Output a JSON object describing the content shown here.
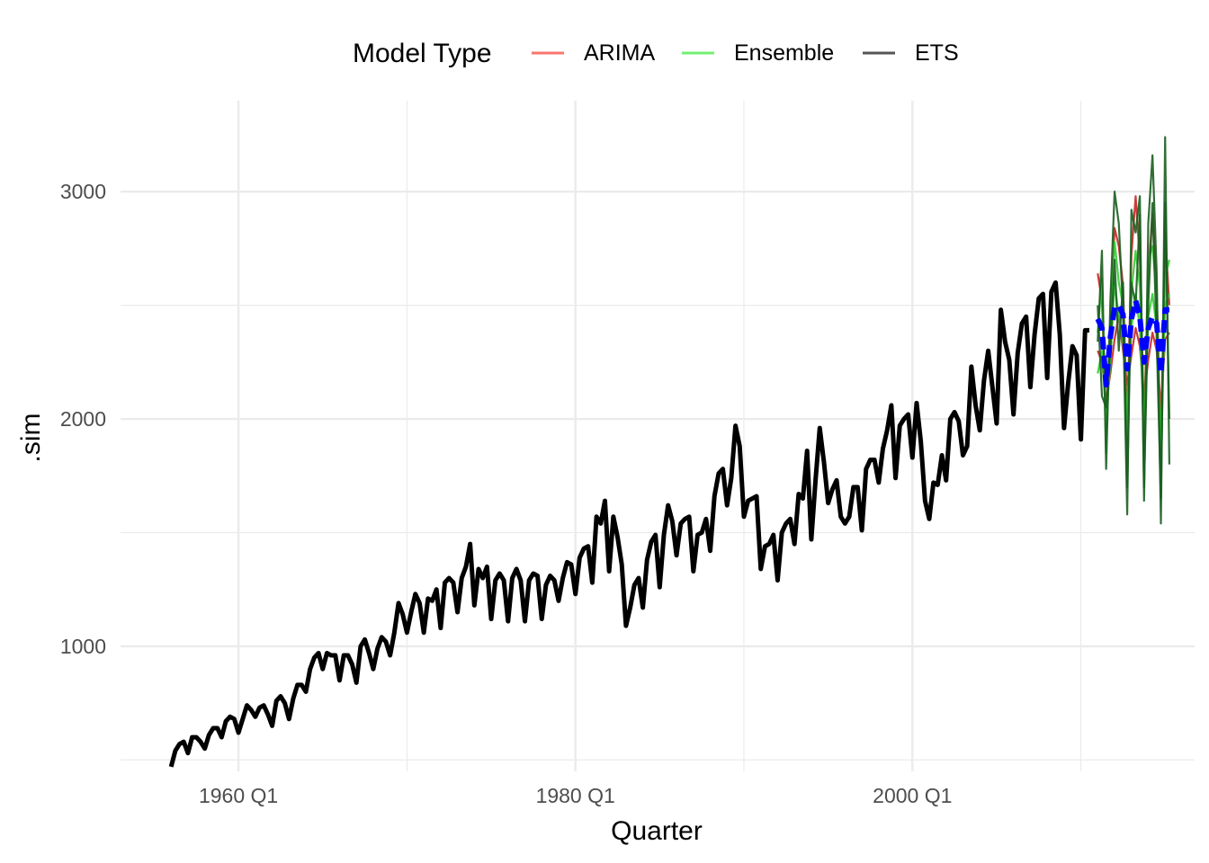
{
  "chart_data": {
    "type": "line",
    "title": "",
    "xlabel": "Quarter",
    "ylabel": ".sim",
    "x_ticks": [
      "1960 Q1",
      "1980 Q1",
      "2000 Q1"
    ],
    "y_ticks": [
      "1000",
      "2000",
      "3000"
    ],
    "x_range": [
      "1953 Q1",
      "2016 Q4"
    ],
    "ylim": [
      450,
      3400
    ],
    "grid": true,
    "legend": {
      "title": "Model Type",
      "position": "top",
      "items": [
        {
          "label": "ARIMA",
          "color": "#f8766d"
        },
        {
          "label": "Ensemble",
          "color": "#73f073"
        },
        {
          "label": "ETS",
          "color": "#555555"
        }
      ]
    },
    "history": {
      "start": "1956 Q1",
      "color": "#000000",
      "values": [
        470,
        540,
        570,
        580,
        530,
        600,
        600,
        580,
        550,
        610,
        640,
        640,
        600,
        670,
        690,
        680,
        620,
        680,
        740,
        720,
        690,
        730,
        740,
        700,
        650,
        760,
        780,
        750,
        680,
        770,
        830,
        830,
        800,
        900,
        950,
        970,
        900,
        970,
        960,
        960,
        850,
        960,
        960,
        920,
        840,
        1000,
        1030,
        970,
        900,
        990,
        1040,
        1020,
        960,
        1060,
        1190,
        1140,
        1060,
        1150,
        1230,
        1190,
        1060,
        1210,
        1200,
        1250,
        1080,
        1280,
        1300,
        1280,
        1150,
        1300,
        1350,
        1450,
        1180,
        1340,
        1300,
        1350,
        1120,
        1290,
        1320,
        1290,
        1110,
        1300,
        1340,
        1290,
        1110,
        1290,
        1320,
        1310,
        1120,
        1270,
        1310,
        1290,
        1200,
        1300,
        1370,
        1360,
        1230,
        1390,
        1430,
        1440,
        1280,
        1570,
        1540,
        1640,
        1330,
        1570,
        1480,
        1360,
        1090,
        1170,
        1270,
        1300,
        1170,
        1380,
        1460,
        1490,
        1260,
        1490,
        1620,
        1550,
        1400,
        1540,
        1560,
        1570,
        1330,
        1490,
        1500,
        1560,
        1420,
        1660,
        1760,
        1780,
        1620,
        1740,
        1970,
        1880,
        1570,
        1640,
        1650,
        1660,
        1340,
        1440,
        1450,
        1490,
        1290,
        1500,
        1540,
        1560,
        1450,
        1670,
        1650,
        1860,
        1470,
        1730,
        1960,
        1810,
        1630,
        1690,
        1730,
        1570,
        1540,
        1570,
        1700,
        1700,
        1510,
        1780,
        1820,
        1820,
        1720,
        1870,
        1950,
        2060,
        1740,
        1970,
        2000,
        2020,
        1830,
        2070,
        1900,
        1640,
        1560,
        1720,
        1710,
        1840,
        1730,
        2000,
        2030,
        1990,
        1840,
        1880,
        2230,
        2060,
        1950,
        2170,
        2300,
        2140,
        1980,
        2480,
        2340,
        2260,
        2020,
        2290,
        2420,
        2450,
        2140,
        2370,
        2530,
        2550,
        2180,
        2560,
        2600,
        2370,
        1960,
        2160,
        2320,
        2280,
        1910,
        2390,
        2390
      ]
    },
    "forecast": {
      "start": "2011 Q1",
      "note_series": [
        "ARIMA",
        "Ensemble",
        "ETS"
      ],
      "mean_color": "#0000ff",
      "mean": [
        2440,
        2400,
        2150,
        2360,
        2490,
        2500,
        2460,
        2220,
        2440,
        2520,
        2450,
        2250,
        2400,
        2450,
        2420,
        2200,
        2480,
        2480
      ],
      "draws": [
        {
          "name": "ARIMA",
          "color": "#c62828",
          "values": [
            2640,
            2520,
            1960,
            2440,
            2840,
            2760,
            2590,
            1980,
            2720,
            2980,
            2700,
            1980,
            2640,
            2900,
            2560,
            1860,
            2820,
            2500
          ]
        },
        {
          "name": "ARIMA",
          "color": "#c62828",
          "values": [
            2300,
            2250,
            2080,
            2200,
            2350,
            2460,
            2300,
            2150,
            2280,
            2400,
            2320,
            2100,
            2260,
            2380,
            2300,
            2050,
            2350,
            2380
          ]
        },
        {
          "name": "Ensemble",
          "color": "#33cc33",
          "values": [
            2380,
            2620,
            1850,
            2420,
            2780,
            2600,
            2500,
            1900,
            2560,
            2740,
            2580,
            1880,
            2700,
            2760,
            2540,
            1760,
            2620,
            2700
          ]
        },
        {
          "name": "Ensemble",
          "color": "#33cc33",
          "values": [
            2200,
            2300,
            2000,
            2250,
            2600,
            2450,
            2350,
            2000,
            2400,
            2550,
            2400,
            1950,
            2450,
            2550,
            2400,
            1900,
            2500,
            2550
          ]
        },
        {
          "name": "ETS",
          "color": "#1b5e20",
          "values": [
            2340,
            2740,
            1780,
            2520,
            3000,
            2860,
            2480,
            1580,
            2920,
            2820,
            2980,
            1640,
            2860,
            3160,
            2640,
            1540,
            3240,
            1800
          ]
        },
        {
          "name": "ETS",
          "color": "#1b5e20",
          "values": [
            2500,
            2100,
            2050,
            2300,
            2700,
            2300,
            2600,
            1700,
            2600,
            2500,
            2900,
            1700,
            2500,
            2950,
            2350,
            1650,
            2950,
            2000
          ]
        }
      ]
    }
  }
}
